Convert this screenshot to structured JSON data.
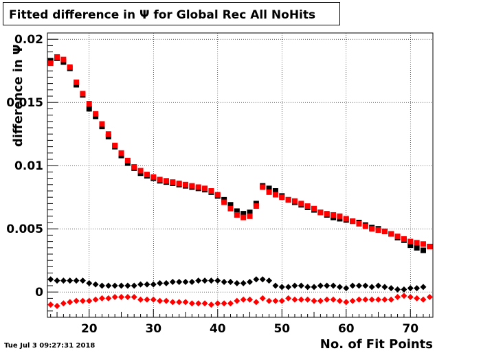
{
  "title": "Fitted difference in  Ψ  for Global Rec All NoHits",
  "timestamp": "Tue Jul  3 09:27:31 2018",
  "chart_data": {
    "type": "scatter",
    "title": "Fitted difference in  Ψ  for Global Rec All NoHits",
    "xlabel": "No. of Fit Points",
    "ylabel": "difference in Ψ",
    "xlim": [
      13.5,
      73.5
    ],
    "ylim": [
      -0.002,
      0.0205
    ],
    "xticks": [
      20,
      30,
      40,
      50,
      60,
      70
    ],
    "xtick_labels": [
      "20",
      "30",
      "40",
      "50",
      "60",
      "70"
    ],
    "yticks": [
      0,
      0.005,
      0.01,
      0.015,
      0.02
    ],
    "ytick_labels": [
      "0",
      "0.005",
      "0.01",
      "0.015",
      "0.02"
    ],
    "grid": true,
    "colors": {
      "black": "#000000",
      "red": "#ff0000"
    },
    "series": [
      {
        "color": "black",
        "marker": "square",
        "x": [
          14,
          15,
          16,
          17,
          18,
          19,
          20,
          21,
          22,
          23,
          24,
          25,
          26,
          27,
          28,
          29,
          30,
          31,
          32,
          33,
          34,
          35,
          36,
          37,
          38,
          39,
          40,
          41,
          42,
          43,
          44,
          45,
          46,
          47,
          48,
          49,
          50,
          51,
          52,
          53,
          54,
          55,
          56,
          57,
          58,
          59,
          60,
          61,
          62,
          63,
          64,
          65,
          66,
          67,
          68,
          69,
          70,
          71,
          72,
          73
        ],
        "y": [
          0.0183,
          0.0185,
          0.0182,
          0.0177,
          0.0164,
          0.0156,
          0.0145,
          0.0139,
          0.0131,
          0.0123,
          0.0115,
          0.0108,
          0.0102,
          0.0098,
          0.0094,
          0.0092,
          0.009,
          0.0088,
          0.0087,
          0.0086,
          0.0085,
          0.0084,
          0.0083,
          0.0082,
          0.0081,
          0.0079,
          0.0076,
          0.0073,
          0.0069,
          0.0064,
          0.0062,
          0.0063,
          0.007,
          0.0084,
          0.0082,
          0.008,
          0.0076,
          0.0073,
          0.0071,
          0.0069,
          0.0067,
          0.0065,
          0.0063,
          0.0061,
          0.0059,
          0.0058,
          0.0057,
          0.0056,
          0.0055,
          0.0053,
          0.0051,
          0.005,
          0.0048,
          0.0046,
          0.0043,
          0.0041,
          0.0037,
          0.0035,
          0.0033,
          0.0036
        ]
      },
      {
        "color": "red",
        "marker": "square",
        "x": [
          14,
          15,
          16,
          17,
          18,
          19,
          20,
          21,
          22,
          23,
          24,
          25,
          26,
          27,
          28,
          29,
          30,
          31,
          32,
          33,
          34,
          35,
          36,
          37,
          38,
          39,
          40,
          41,
          42,
          43,
          44,
          45,
          46,
          47,
          48,
          49,
          50,
          51,
          52,
          53,
          54,
          55,
          56,
          57,
          58,
          59,
          60,
          61,
          62,
          63,
          64,
          65,
          66,
          67,
          68,
          69,
          70,
          71,
          72,
          73
        ],
        "y": [
          0.0181,
          0.0186,
          0.0184,
          0.0178,
          0.0166,
          0.0157,
          0.0149,
          0.0141,
          0.0133,
          0.0125,
          0.0116,
          0.011,
          0.0104,
          0.0099,
          0.0096,
          0.0093,
          0.0091,
          0.0089,
          0.0088,
          0.0087,
          0.0086,
          0.0085,
          0.0084,
          0.0083,
          0.0082,
          0.008,
          0.0077,
          0.0071,
          0.0066,
          0.0061,
          0.0059,
          0.006,
          0.0068,
          0.0083,
          0.0079,
          0.0077,
          0.0075,
          0.0073,
          0.0072,
          0.007,
          0.0068,
          0.0066,
          0.0063,
          0.0062,
          0.0061,
          0.006,
          0.0058,
          0.0056,
          0.0054,
          0.0052,
          0.005,
          0.0049,
          0.0048,
          0.0046,
          0.0044,
          0.0042,
          0.004,
          0.0039,
          0.0038,
          0.0036
        ]
      },
      {
        "color": "black",
        "marker": "diamond",
        "x": [
          14,
          15,
          16,
          17,
          18,
          19,
          20,
          21,
          22,
          23,
          24,
          25,
          26,
          27,
          28,
          29,
          30,
          31,
          32,
          33,
          34,
          35,
          36,
          37,
          38,
          39,
          40,
          41,
          42,
          43,
          44,
          45,
          46,
          47,
          48,
          49,
          50,
          51,
          52,
          53,
          54,
          55,
          56,
          57,
          58,
          59,
          60,
          61,
          62,
          63,
          64,
          65,
          66,
          67,
          68,
          69,
          70,
          71,
          72
        ],
        "y": [
          0.001,
          0.0009,
          0.0009,
          0.0009,
          0.0009,
          0.0009,
          0.0007,
          0.0006,
          0.0005,
          0.0005,
          0.0005,
          0.0005,
          0.0005,
          0.0005,
          0.0006,
          0.0006,
          0.0006,
          0.0007,
          0.0007,
          0.0008,
          0.0008,
          0.0008,
          0.0008,
          0.0009,
          0.0009,
          0.0009,
          0.0009,
          0.0008,
          0.0008,
          0.0007,
          0.0007,
          0.0008,
          0.001,
          0.001,
          0.0009,
          0.0005,
          0.0004,
          0.0004,
          0.0005,
          0.0005,
          0.0004,
          0.0004,
          0.0005,
          0.0005,
          0.0005,
          0.0004,
          0.0003,
          0.0005,
          0.0005,
          0.0005,
          0.0004,
          0.0005,
          0.0004,
          0.0003,
          0.0002,
          0.0002,
          0.0003,
          0.0003,
          0.0004
        ]
      },
      {
        "color": "red",
        "marker": "diamond",
        "x": [
          14,
          15,
          16,
          17,
          18,
          19,
          20,
          21,
          22,
          23,
          24,
          25,
          26,
          27,
          28,
          29,
          30,
          31,
          32,
          33,
          34,
          35,
          36,
          37,
          38,
          39,
          40,
          41,
          42,
          43,
          44,
          45,
          46,
          47,
          48,
          49,
          50,
          51,
          52,
          53,
          54,
          55,
          56,
          57,
          58,
          59,
          60,
          61,
          62,
          63,
          64,
          65,
          66,
          67,
          68,
          69,
          70,
          71,
          72,
          73
        ],
        "y": [
          -0.001,
          -0.0011,
          -0.0009,
          -0.0008,
          -0.0007,
          -0.0007,
          -0.0007,
          -0.0006,
          -0.0005,
          -0.0005,
          -0.0004,
          -0.0004,
          -0.0004,
          -0.0004,
          -0.0006,
          -0.0006,
          -0.0006,
          -0.0007,
          -0.0007,
          -0.0008,
          -0.0008,
          -0.0008,
          -0.0009,
          -0.0009,
          -0.0009,
          -0.001,
          -0.0009,
          -0.0009,
          -0.0009,
          -0.0007,
          -0.0006,
          -0.0006,
          -0.0008,
          -0.0005,
          -0.0007,
          -0.0007,
          -0.0007,
          -0.0005,
          -0.0006,
          -0.0006,
          -0.0006,
          -0.0007,
          -0.0007,
          -0.0006,
          -0.0006,
          -0.0007,
          -0.0008,
          -0.0007,
          -0.0006,
          -0.0006,
          -0.0006,
          -0.0006,
          -0.0006,
          -0.0006,
          -0.0004,
          -0.0003,
          -0.0004,
          -0.0005,
          -0.0006,
          -0.0004
        ]
      }
    ]
  }
}
